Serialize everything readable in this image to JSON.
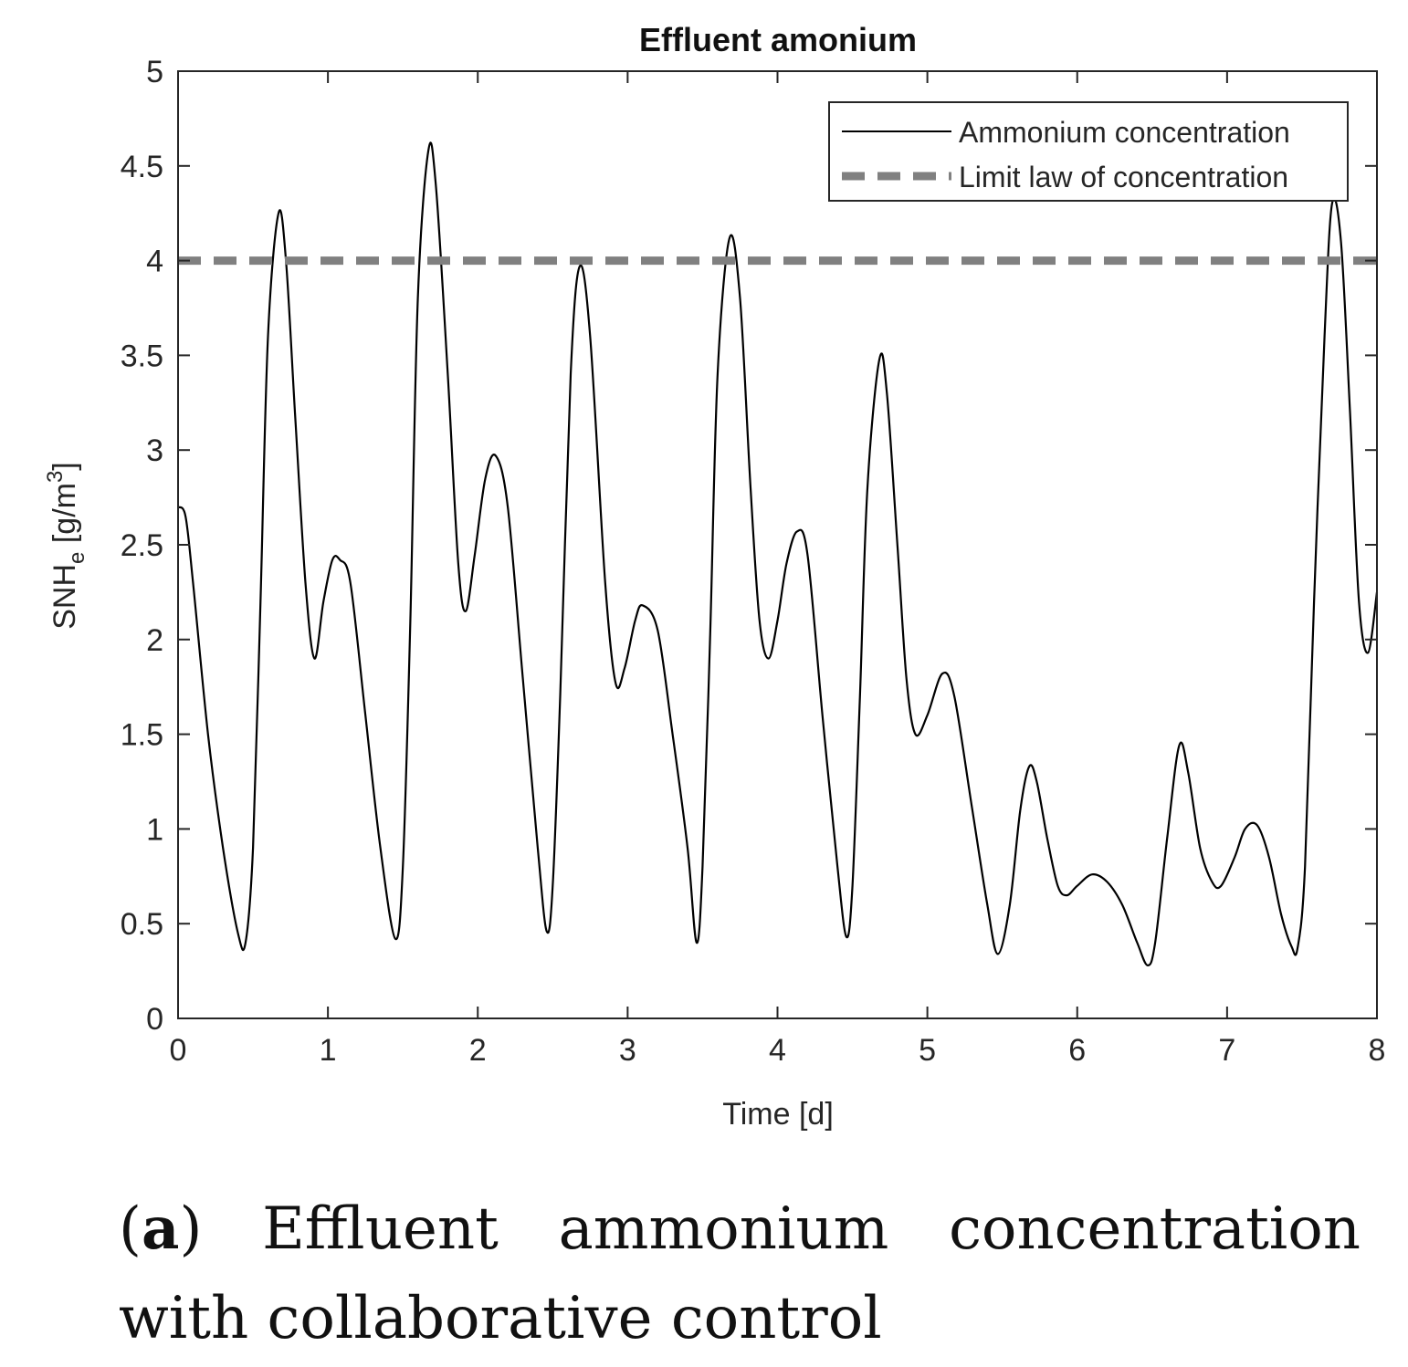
{
  "chart_data": {
    "type": "line",
    "title": "Effluent amonium",
    "xlabel": "Time [d]",
    "ylabel_main": "SNH",
    "ylabel_sub": "e",
    "ylabel_rest": " [g/m",
    "ylabel_sup": "3",
    "ylabel_close": "]",
    "xlim": [
      0,
      8
    ],
    "ylim": [
      0,
      5
    ],
    "xticks": [
      0,
      1,
      2,
      3,
      4,
      5,
      6,
      7,
      8
    ],
    "xtick_labels": [
      "0",
      "1",
      "2",
      "3",
      "4",
      "5",
      "6",
      "7",
      "8"
    ],
    "yticks": [
      0,
      0.5,
      1,
      1.5,
      2,
      2.5,
      3,
      3.5,
      4,
      4.5,
      5
    ],
    "ytick_labels": [
      "0",
      "0.5",
      "1",
      "1.5",
      "2",
      "2.5",
      "3",
      "3.5",
      "4",
      "4.5",
      "5"
    ],
    "legend_position": "top-right",
    "series": [
      {
        "name": "Ammonium concentration",
        "style": "solid",
        "color": "#000000",
        "x": [
          0,
          0.05,
          0.1,
          0.2,
          0.3,
          0.4,
          0.45,
          0.5,
          0.55,
          0.6,
          0.67,
          0.72,
          0.78,
          0.85,
          0.91,
          0.97,
          1.03,
          1.08,
          1.15,
          1.25,
          1.35,
          1.45,
          1.5,
          1.55,
          1.6,
          1.67,
          1.72,
          1.8,
          1.87,
          1.92,
          1.98,
          2.05,
          2.12,
          2.2,
          2.3,
          2.4,
          2.46,
          2.5,
          2.55,
          2.62,
          2.68,
          2.75,
          2.85,
          2.92,
          2.98,
          3.05,
          3.1,
          3.2,
          3.3,
          3.4,
          3.46,
          3.5,
          3.55,
          3.6,
          3.68,
          3.75,
          3.82,
          3.88,
          3.94,
          4.0,
          4.06,
          4.13,
          4.2,
          4.3,
          4.4,
          4.46,
          4.5,
          4.55,
          4.6,
          4.68,
          4.73,
          4.8,
          4.86,
          4.92,
          5.0,
          5.1,
          5.18,
          5.3,
          5.4,
          5.47,
          5.55,
          5.62,
          5.68,
          5.73,
          5.8,
          5.87,
          5.93,
          6.0,
          6.1,
          6.2,
          6.3,
          6.4,
          6.47,
          6.52,
          6.6,
          6.68,
          6.74,
          6.82,
          6.9,
          6.96,
          7.05,
          7.12,
          7.2,
          7.28,
          7.36,
          7.43,
          7.47,
          7.52,
          7.58,
          7.65,
          7.7,
          7.76,
          7.82,
          7.88,
          7.94,
          8.0
        ],
        "y": [
          2.7,
          2.65,
          2.3,
          1.5,
          0.9,
          0.45,
          0.4,
          0.9,
          2.2,
          3.6,
          4.25,
          4.0,
          3.2,
          2.3,
          1.9,
          2.2,
          2.42,
          2.42,
          2.3,
          1.6,
          0.9,
          0.42,
          0.8,
          2.1,
          3.8,
          4.58,
          4.4,
          3.4,
          2.4,
          2.15,
          2.45,
          2.85,
          2.97,
          2.7,
          1.8,
          0.9,
          0.46,
          0.7,
          1.7,
          3.4,
          3.97,
          3.6,
          2.3,
          1.77,
          1.85,
          2.1,
          2.18,
          2.05,
          1.5,
          0.9,
          0.4,
          0.8,
          2.0,
          3.4,
          4.12,
          3.8,
          2.8,
          2.1,
          1.9,
          2.1,
          2.4,
          2.57,
          2.45,
          1.6,
          0.8,
          0.43,
          0.7,
          1.7,
          2.8,
          3.48,
          3.3,
          2.5,
          1.8,
          1.5,
          1.6,
          1.82,
          1.7,
          1.1,
          0.6,
          0.34,
          0.6,
          1.1,
          1.33,
          1.25,
          0.95,
          0.7,
          0.65,
          0.7,
          0.76,
          0.72,
          0.6,
          0.4,
          0.28,
          0.4,
          0.95,
          1.44,
          1.3,
          0.9,
          0.72,
          0.7,
          0.85,
          1.0,
          1.02,
          0.85,
          0.55,
          0.38,
          0.37,
          0.8,
          2.2,
          3.6,
          4.3,
          4.1,
          3.2,
          2.2,
          1.93,
          2.25
        ]
      },
      {
        "name": "Limit law of concentration",
        "style": "dashed",
        "color": "#808080",
        "x": [
          0,
          8
        ],
        "y": [
          4,
          4
        ]
      }
    ]
  },
  "caption": {
    "label": "a",
    "line1_after": " Effluent ammonium concentration",
    "line2": "with collaborative control"
  }
}
